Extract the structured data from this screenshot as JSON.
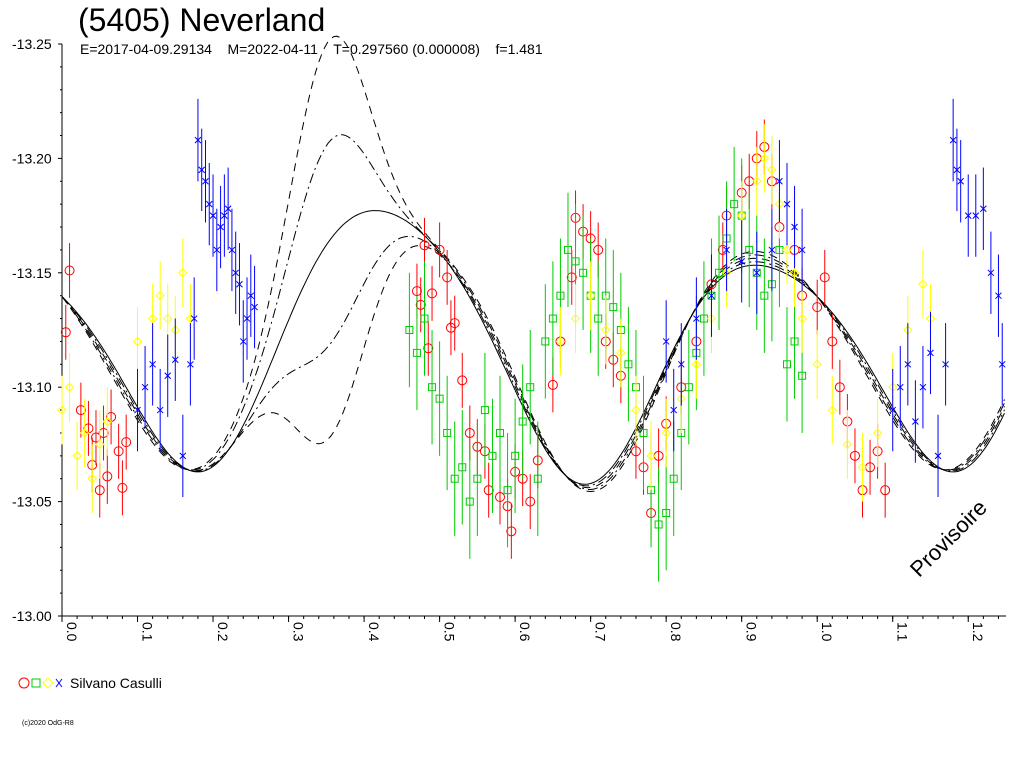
{
  "header": {
    "title": "(5405) Neverland",
    "subtitle": "E=2017-04-09.29134    M=2022-04-11    T=0.297560 (0.000008)    f=1.481"
  },
  "legend": {
    "observer": "Silvano Casulli",
    "marker_colors": [
      "#ff0000",
      "#00cc00",
      "#ffff00",
      "#0000ff"
    ]
  },
  "watermark": "Provisoire",
  "copyright": "(c)2020 OdG-R8",
  "chart_data": {
    "type": "scatter",
    "title": "(5405) Neverland",
    "xlim": [
      0.0,
      1.25
    ],
    "ylim": [
      -13.25,
      -13.0
    ],
    "y_ticks": [
      "-13.25",
      "-13.20",
      "-13.15",
      "-13.10",
      "-13.05",
      "-13.00"
    ],
    "x_ticks": [
      "0.0",
      "0.1",
      "0.2",
      "0.3",
      "0.4",
      "0.5",
      "0.6",
      "0.7",
      "0.8",
      "0.9",
      "1.0",
      "1.1",
      "1.2"
    ],
    "series": [
      {
        "color": "#ff0000",
        "marker": "circle",
        "error": 0.012,
        "points": [
          [
            0.005,
            -13.124
          ],
          [
            0.01,
            -13.151
          ],
          [
            0.025,
            -13.09
          ],
          [
            0.035,
            -13.082
          ],
          [
            0.04,
            -13.066
          ],
          [
            0.045,
            -13.078
          ],
          [
            0.05,
            -13.055
          ],
          [
            0.055,
            -13.08
          ],
          [
            0.06,
            -13.061
          ],
          [
            0.065,
            -13.087
          ],
          [
            0.075,
            -13.072
          ],
          [
            0.08,
            -13.056
          ],
          [
            0.085,
            -13.076
          ],
          [
            0.47,
            -13.142
          ],
          [
            0.475,
            -13.136
          ],
          [
            0.48,
            -13.162
          ],
          [
            0.485,
            -13.117
          ],
          [
            0.49,
            -13.141
          ],
          [
            0.5,
            -13.16
          ],
          [
            0.51,
            -13.148
          ],
          [
            0.515,
            -13.126
          ],
          [
            0.52,
            -13.128
          ],
          [
            0.53,
            -13.103
          ],
          [
            0.54,
            -13.08
          ],
          [
            0.55,
            -13.074
          ],
          [
            0.56,
            -13.072
          ],
          [
            0.565,
            -13.055
          ],
          [
            0.58,
            -13.052
          ],
          [
            0.59,
            -13.048
          ],
          [
            0.595,
            -13.037
          ],
          [
            0.6,
            -13.063
          ],
          [
            0.61,
            -13.06
          ],
          [
            0.62,
            -13.05
          ],
          [
            0.63,
            -13.068
          ],
          [
            0.65,
            -13.101
          ],
          [
            0.66,
            -13.12
          ],
          [
            0.675,
            -13.148
          ],
          [
            0.68,
            -13.174
          ],
          [
            0.69,
            -13.168
          ],
          [
            0.7,
            -13.165
          ],
          [
            0.71,
            -13.16
          ],
          [
            0.72,
            -13.12
          ],
          [
            0.73,
            -13.112
          ],
          [
            0.74,
            -13.105
          ],
          [
            0.76,
            -13.072
          ],
          [
            0.77,
            -13.065
          ],
          [
            0.78,
            -13.045
          ],
          [
            0.79,
            -13.07
          ],
          [
            0.8,
            -13.084
          ],
          [
            0.82,
            -13.1
          ],
          [
            0.84,
            -13.12
          ],
          [
            0.86,
            -13.145
          ],
          [
            0.875,
            -13.16
          ],
          [
            0.88,
            -13.175
          ],
          [
            0.9,
            -13.185
          ],
          [
            0.91,
            -13.19
          ],
          [
            0.92,
            -13.2
          ],
          [
            0.93,
            -13.205
          ],
          [
            0.94,
            -13.19
          ],
          [
            0.95,
            -13.17
          ],
          [
            0.97,
            -13.16
          ],
          [
            0.98,
            -13.14
          ],
          [
            1.0,
            -13.135
          ],
          [
            1.01,
            -13.148
          ],
          [
            1.02,
            -13.12
          ],
          [
            1.03,
            -13.1
          ],
          [
            1.04,
            -13.085
          ],
          [
            1.05,
            -13.07
          ],
          [
            1.06,
            -13.055
          ],
          [
            1.07,
            -13.065
          ],
          [
            1.08,
            -13.072
          ],
          [
            1.09,
            -13.055
          ]
        ]
      },
      {
        "color": "#00cc00",
        "marker": "square",
        "error": 0.025,
        "points": [
          [
            0.46,
            -13.125
          ],
          [
            0.47,
            -13.115
          ],
          [
            0.48,
            -13.13
          ],
          [
            0.49,
            -13.1
          ],
          [
            0.5,
            -13.095
          ],
          [
            0.51,
            -13.08
          ],
          [
            0.52,
            -13.06
          ],
          [
            0.53,
            -13.065
          ],
          [
            0.54,
            -13.05
          ],
          [
            0.55,
            -13.06
          ],
          [
            0.56,
            -13.09
          ],
          [
            0.57,
            -13.07
          ],
          [
            0.58,
            -13.08
          ],
          [
            0.59,
            -13.055
          ],
          [
            0.6,
            -13.07
          ],
          [
            0.61,
            -13.085
          ],
          [
            0.62,
            -13.1
          ],
          [
            0.63,
            -13.06
          ],
          [
            0.64,
            -13.12
          ],
          [
            0.65,
            -13.13
          ],
          [
            0.66,
            -13.14
          ],
          [
            0.67,
            -13.16
          ],
          [
            0.68,
            -13.155
          ],
          [
            0.69,
            -13.15
          ],
          [
            0.7,
            -13.14
          ],
          [
            0.71,
            -13.13
          ],
          [
            0.72,
            -13.14
          ],
          [
            0.73,
            -13.135
          ],
          [
            0.74,
            -13.125
          ],
          [
            0.75,
            -13.11
          ],
          [
            0.76,
            -13.1
          ],
          [
            0.77,
            -13.08
          ],
          [
            0.78,
            -13.055
          ],
          [
            0.79,
            -13.04
          ],
          [
            0.8,
            -13.045
          ],
          [
            0.81,
            -13.06
          ],
          [
            0.82,
            -13.08
          ],
          [
            0.83,
            -13.1
          ],
          [
            0.84,
            -13.115
          ],
          [
            0.85,
            -13.13
          ],
          [
            0.86,
            -13.14
          ],
          [
            0.87,
            -13.15
          ],
          [
            0.88,
            -13.165
          ],
          [
            0.89,
            -13.18
          ],
          [
            0.9,
            -13.175
          ],
          [
            0.91,
            -13.16
          ],
          [
            0.92,
            -13.15
          ],
          [
            0.93,
            -13.14
          ],
          [
            0.94,
            -13.145
          ],
          [
            0.95,
            -13.16
          ],
          [
            0.96,
            -13.11
          ],
          [
            0.97,
            -13.12
          ],
          [
            0.98,
            -13.105
          ]
        ]
      },
      {
        "color": "#ffff00",
        "marker": "diamond",
        "error": 0.015,
        "points": [
          [
            0.0,
            -13.09
          ],
          [
            0.01,
            -13.1
          ],
          [
            0.02,
            -13.07
          ],
          [
            0.03,
            -13.08
          ],
          [
            0.04,
            -13.06
          ],
          [
            0.05,
            -13.075
          ],
          [
            0.06,
            -13.085
          ],
          [
            0.1,
            -13.12
          ],
          [
            0.12,
            -13.13
          ],
          [
            0.13,
            -13.14
          ],
          [
            0.14,
            -13.13
          ],
          [
            0.15,
            -13.125
          ],
          [
            0.16,
            -13.15
          ],
          [
            0.17,
            -13.13
          ],
          [
            0.66,
            -13.12
          ],
          [
            0.68,
            -13.13
          ],
          [
            0.7,
            -13.14
          ],
          [
            0.72,
            -13.125
          ],
          [
            0.74,
            -13.115
          ],
          [
            0.76,
            -13.09
          ],
          [
            0.78,
            -13.07
          ],
          [
            0.8,
            -13.08
          ],
          [
            0.82,
            -13.095
          ],
          [
            0.84,
            -13.11
          ],
          [
            0.86,
            -13.13
          ],
          [
            0.88,
            -13.15
          ],
          [
            0.9,
            -13.175
          ],
          [
            0.92,
            -13.19
          ],
          [
            0.93,
            -13.2
          ],
          [
            0.94,
            -13.195
          ],
          [
            0.95,
            -13.18
          ],
          [
            0.96,
            -13.16
          ],
          [
            0.97,
            -13.15
          ],
          [
            0.98,
            -13.13
          ],
          [
            1.0,
            -13.11
          ],
          [
            1.02,
            -13.09
          ],
          [
            1.04,
            -13.075
          ],
          [
            1.06,
            -13.065
          ],
          [
            1.08,
            -13.08
          ],
          [
            1.1,
            -13.1
          ],
          [
            1.12,
            -13.125
          ],
          [
            1.14,
            -13.145
          ],
          [
            1.15,
            -13.13
          ]
        ]
      },
      {
        "color": "#0000ff",
        "marker": "x",
        "error": 0.018,
        "points": [
          [
            0.1,
            -13.09
          ],
          [
            0.11,
            -13.1
          ],
          [
            0.12,
            -13.11
          ],
          [
            0.13,
            -13.09
          ],
          [
            0.14,
            -13.105
          ],
          [
            0.15,
            -13.112
          ],
          [
            0.16,
            -13.07
          ],
          [
            0.17,
            -13.11
          ],
          [
            0.175,
            -13.13
          ],
          [
            0.18,
            -13.208
          ],
          [
            0.185,
            -13.195
          ],
          [
            0.19,
            -13.19
          ],
          [
            0.195,
            -13.18
          ],
          [
            0.2,
            -13.175
          ],
          [
            0.205,
            -13.16
          ],
          [
            0.21,
            -13.17
          ],
          [
            0.215,
            -13.175
          ],
          [
            0.22,
            -13.178
          ],
          [
            0.225,
            -13.16
          ],
          [
            0.23,
            -13.15
          ],
          [
            0.235,
            -13.145
          ],
          [
            0.24,
            -13.12
          ],
          [
            0.245,
            -13.13
          ],
          [
            0.25,
            -13.14
          ],
          [
            0.255,
            -13.135
          ],
          [
            0.8,
            -13.12
          ],
          [
            0.81,
            -13.09
          ],
          [
            0.82,
            -13.11
          ],
          [
            0.84,
            -13.13
          ],
          [
            0.86,
            -13.14
          ],
          [
            0.88,
            -13.16
          ],
          [
            0.9,
            -13.155
          ],
          [
            0.92,
            -13.15
          ],
          [
            0.94,
            -13.16
          ],
          [
            0.95,
            -13.19
          ],
          [
            0.96,
            -13.18
          ],
          [
            0.97,
            -13.17
          ],
          [
            0.98,
            -13.16
          ],
          [
            1.1,
            -13.09
          ],
          [
            1.11,
            -13.1
          ],
          [
            1.12,
            -13.11
          ],
          [
            1.13,
            -13.085
          ],
          [
            1.14,
            -13.1
          ],
          [
            1.15,
            -13.115
          ],
          [
            1.16,
            -13.07
          ],
          [
            1.17,
            -13.11
          ],
          [
            1.18,
            -13.208
          ],
          [
            1.185,
            -13.195
          ],
          [
            1.19,
            -13.19
          ],
          [
            1.2,
            -13.175
          ],
          [
            1.21,
            -13.175
          ],
          [
            1.22,
            -13.178
          ],
          [
            1.23,
            -13.15
          ],
          [
            1.24,
            -13.14
          ],
          [
            1.245,
            -13.11
          ]
        ]
      }
    ]
  }
}
